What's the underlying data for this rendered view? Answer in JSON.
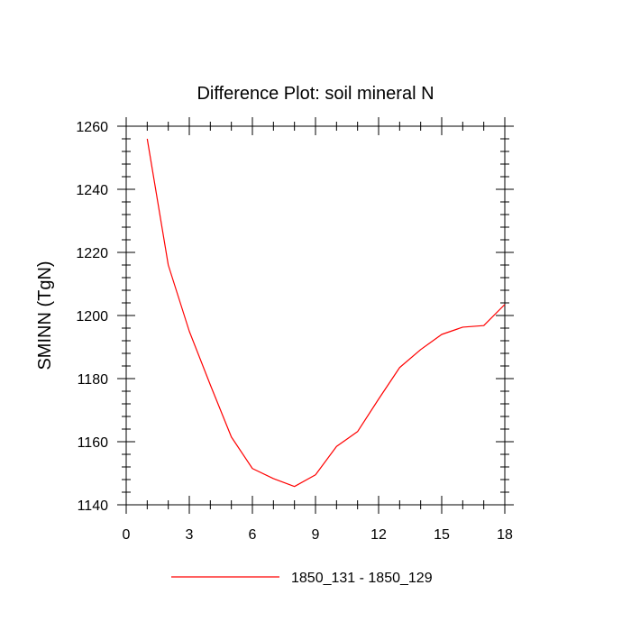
{
  "chart_data": {
    "type": "line",
    "title": "Difference Plot: soil mineral N",
    "xlabel": "",
    "ylabel": "SMINN  (TgN)",
    "xlim": [
      0,
      18
    ],
    "ylim": [
      1140,
      1260
    ],
    "xticks": [
      0,
      3,
      6,
      9,
      12,
      15,
      18
    ],
    "yticks": [
      1140,
      1160,
      1180,
      1200,
      1220,
      1240,
      1260
    ],
    "grid": false,
    "legend_position": "bottom",
    "series": [
      {
        "name": "1850_131 - 1850_129",
        "color": "#ff0000",
        "x": [
          1,
          2,
          3,
          4,
          5,
          6,
          7,
          8,
          9,
          10,
          11,
          12,
          13,
          14,
          15,
          16,
          17,
          18
        ],
        "y": [
          1256,
          1216,
          1195,
          1178,
          1161.5,
          1151.5,
          1148.3,
          1145.8,
          1149.5,
          1158.5,
          1163.2,
          1173.5,
          1183.5,
          1189.2,
          1194,
          1196.3,
          1196.8,
          1203.5
        ]
      }
    ]
  }
}
